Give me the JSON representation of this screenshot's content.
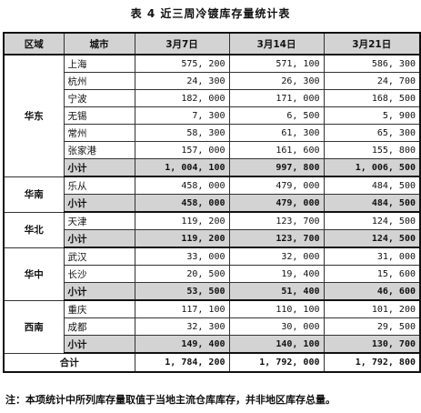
{
  "title": "表 4  近三周冷镀库存量统计表",
  "headers": [
    "区域",
    "城市",
    "3月7日",
    "3月14日",
    "3月21日"
  ],
  "regions": [
    {
      "name": "华东",
      "rows": [
        {
          "city": "上海",
          "v": [
            "575, 200",
            "571, 100",
            "586, 300"
          ]
        },
        {
          "city": "杭州",
          "v": [
            "24, 300",
            "26, 300",
            "24, 700"
          ]
        },
        {
          "city": "宁波",
          "v": [
            "182, 000",
            "171, 000",
            "168, 500"
          ]
        },
        {
          "city": "无锡",
          "v": [
            "7, 300",
            "6, 500",
            "5, 900"
          ]
        },
        {
          "city": "常州",
          "v": [
            "58, 300",
            "61, 300",
            "65, 300"
          ]
        },
        {
          "city": "张家港",
          "v": [
            "157, 000",
            "161, 600",
            "155, 800"
          ]
        }
      ],
      "subtotal": {
        "label": "小计",
        "v": [
          "1, 004, 100",
          "997, 800",
          "1, 006, 500"
        ]
      }
    },
    {
      "name": "华南",
      "rows": [
        {
          "city": "乐从",
          "v": [
            "458, 000",
            "479, 000",
            "484, 500"
          ]
        }
      ],
      "subtotal": {
        "label": "小计",
        "v": [
          "458, 000",
          "479, 000",
          "484, 500"
        ]
      }
    },
    {
      "name": "华北",
      "rows": [
        {
          "city": "天津",
          "v": [
            "119, 200",
            "123, 700",
            "124, 500"
          ]
        }
      ],
      "subtotal": {
        "label": "小计",
        "v": [
          "119, 200",
          "123, 700",
          "124, 500"
        ]
      }
    },
    {
      "name": "华中",
      "rows": [
        {
          "city": "武汉",
          "v": [
            "33, 000",
            "32, 000",
            "31, 000"
          ]
        },
        {
          "city": "长沙",
          "v": [
            "20, 500",
            "19, 400",
            "15, 600"
          ]
        }
      ],
      "subtotal": {
        "label": "小计",
        "v": [
          "53, 500",
          "51, 400",
          "46, 600"
        ]
      }
    },
    {
      "name": "西南",
      "rows": [
        {
          "city": "重庆",
          "v": [
            "117, 100",
            "110, 100",
            "101, 200"
          ]
        },
        {
          "city": "成都",
          "v": [
            "32, 300",
            "30, 000",
            "29, 500"
          ]
        }
      ],
      "subtotal": {
        "label": "小计",
        "v": [
          "149, 400",
          "140, 100",
          "130, 700"
        ]
      }
    }
  ],
  "total": {
    "label": "合计",
    "v": [
      "1, 784, 200",
      "1, 792, 000",
      "1, 792, 800"
    ]
  },
  "note": "注：本项统计中所列库存量取值于当地主流仓库库存，并非地区库存总量。",
  "colors": {
    "header_bg": "#d3d3d3",
    "subtotal_bg": "#d3d3d3",
    "border": "#333333"
  }
}
